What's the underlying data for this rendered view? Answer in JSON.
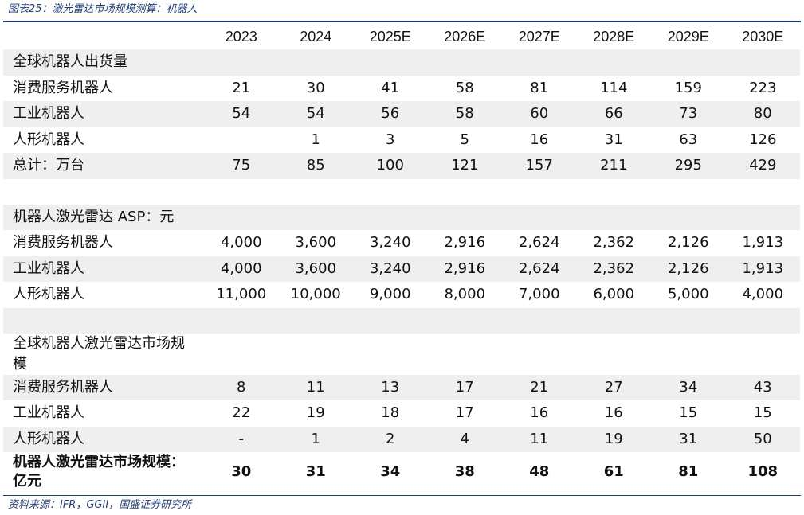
{
  "figure_title": "图表25：激光雷达市场规模测算：机器人",
  "source": "资料来源：IFR，GGII，国盛证券研究所",
  "years": [
    "2023",
    "2024",
    "2025E",
    "2026E",
    "2027E",
    "2028E",
    "2029E",
    "2030E"
  ],
  "section1": {
    "title": "全球机器人出货量",
    "rows": [
      {
        "label": "消费服务机器人",
        "values": [
          "21",
          "30",
          "41",
          "58",
          "81",
          "114",
          "159",
          "223"
        ]
      },
      {
        "label": "工业机器人",
        "values": [
          "54",
          "54",
          "56",
          "58",
          "60",
          "66",
          "73",
          "80"
        ]
      },
      {
        "label": "人形机器人",
        "values": [
          "",
          "1",
          "3",
          "5",
          "16",
          "31",
          "63",
          "126"
        ]
      },
      {
        "label": "总计：万台",
        "values": [
          "75",
          "85",
          "100",
          "121",
          "157",
          "211",
          "295",
          "429"
        ]
      }
    ]
  },
  "section2": {
    "title": "机器人激光雷达 ASP：元",
    "rows": [
      {
        "label": "消费服务机器人",
        "values": [
          "4,000",
          "3,600",
          "3,240",
          "2,916",
          "2,624",
          "2,362",
          "2,126",
          "1,913"
        ]
      },
      {
        "label": "工业机器人",
        "values": [
          "4,000",
          "3,600",
          "3,240",
          "2,916",
          "2,624",
          "2,362",
          "2,126",
          "1,913"
        ]
      },
      {
        "label": "人形机器人",
        "values": [
          "11,000",
          "10,000",
          "9,000",
          "8,000",
          "7,000",
          "6,000",
          "5,000",
          "4,000"
        ]
      }
    ]
  },
  "section3": {
    "title": "全球机器人激光雷达市场规模",
    "rows": [
      {
        "label": "消费服务机器人",
        "values": [
          "8",
          "11",
          "13",
          "17",
          "21",
          "27",
          "34",
          "43"
        ]
      },
      {
        "label": "工业机器人",
        "values": [
          "22",
          "19",
          "18",
          "17",
          "16",
          "16",
          "15",
          "15"
        ]
      },
      {
        "label": "人形机器人",
        "values": [
          "-",
          "1",
          "2",
          "4",
          "11",
          "19",
          "31",
          "50"
        ]
      }
    ],
    "total": {
      "label": "机器人激光雷达市场规模：亿元",
      "values": [
        "30",
        "31",
        "34",
        "38",
        "48",
        "61",
        "81",
        "108"
      ]
    }
  }
}
